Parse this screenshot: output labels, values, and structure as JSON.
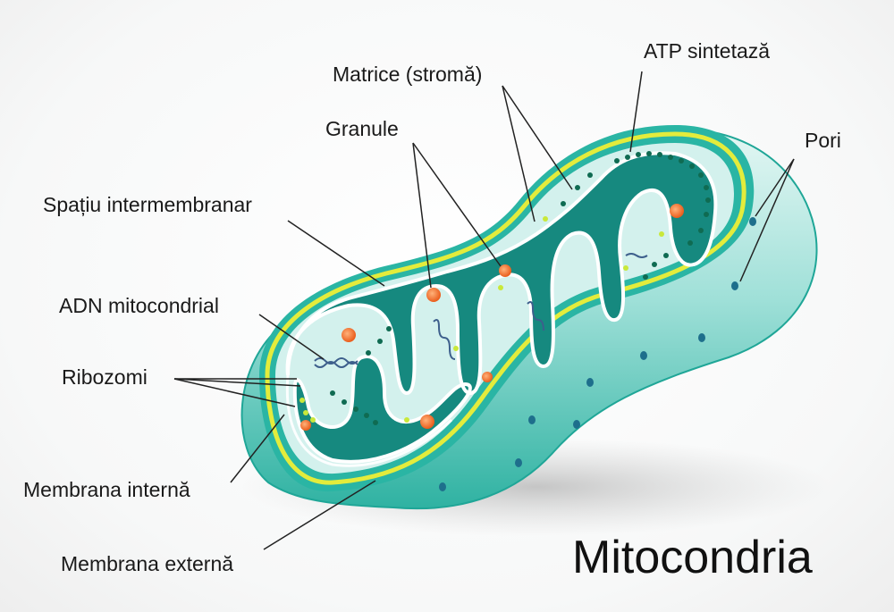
{
  "title": "Mitocondria",
  "labels": {
    "atp": "ATP sintetază",
    "matrix": "Matrice (stromă)",
    "granules": "Granule",
    "pores": "Pori",
    "intermembrane": "Spațiu intermembranar",
    "dna": "ADN mitocondrial",
    "ribosomes": "Ribozomi",
    "inner_membrane": "Membrana internă",
    "outer_membrane": "Membrana externă"
  },
  "colors": {
    "outer_teal": "#2ab5a4",
    "outer_light": "#bfe9e4",
    "yellow_ring": "#e3ec3c",
    "matrix_dark": "#16897f",
    "intermembrane_light": "#d3f1ed",
    "granule": "#f27a2c",
    "ribosome": "#c9e83a",
    "atp_dot": "#0f6b52",
    "pore": "#1e6f8c"
  }
}
